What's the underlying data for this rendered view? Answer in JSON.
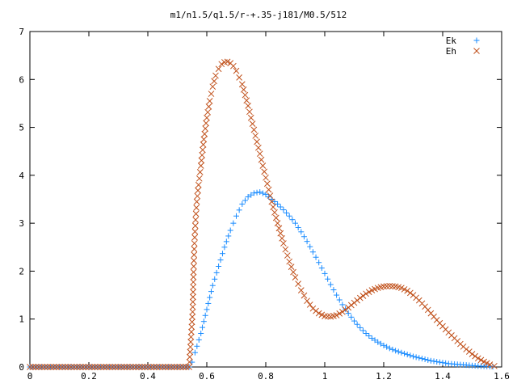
{
  "chart_data": {
    "type": "scatter",
    "title": "m1/n1.5/q1.5/r-+.35-j181/M0.5/512",
    "xlabel": "",
    "ylabel": "",
    "xlim": [
      0,
      1.6
    ],
    "ylim": [
      0,
      7
    ],
    "x_ticks": [
      "0",
      "0.2",
      "0.4",
      "0.6",
      "0.8",
      "1",
      "1.2",
      "1.4",
      "1.6"
    ],
    "y_ticks": [
      "0",
      "1",
      "2",
      "3",
      "4",
      "5",
      "6",
      "7"
    ],
    "legend_position": "top-right",
    "grid": false,
    "series": [
      {
        "name": "Ek",
        "marker": "plus",
        "color": "#1a8cff",
        "points": [
          [
            0.0,
            0
          ],
          [
            0.05,
            0
          ],
          [
            0.1,
            0
          ],
          [
            0.15,
            0
          ],
          [
            0.2,
            0
          ],
          [
            0.25,
            0
          ],
          [
            0.3,
            0
          ],
          [
            0.35,
            0
          ],
          [
            0.4,
            0
          ],
          [
            0.45,
            0
          ],
          [
            0.5,
            0
          ],
          [
            0.54,
            0
          ],
          [
            0.55,
            0.1
          ],
          [
            0.56,
            0.3
          ],
          [
            0.58,
            0.7
          ],
          [
            0.6,
            1.2
          ],
          [
            0.62,
            1.7
          ],
          [
            0.64,
            2.1
          ],
          [
            0.66,
            2.5
          ],
          [
            0.68,
            2.85
          ],
          [
            0.7,
            3.15
          ],
          [
            0.72,
            3.4
          ],
          [
            0.74,
            3.55
          ],
          [
            0.76,
            3.63
          ],
          [
            0.78,
            3.65
          ],
          [
            0.8,
            3.6
          ],
          [
            0.82,
            3.5
          ],
          [
            0.84,
            3.4
          ],
          [
            0.86,
            3.28
          ],
          [
            0.88,
            3.15
          ],
          [
            0.9,
            3.0
          ],
          [
            0.92,
            2.82
          ],
          [
            0.94,
            2.62
          ],
          [
            0.96,
            2.4
          ],
          [
            0.98,
            2.18
          ],
          [
            1.0,
            1.95
          ],
          [
            1.02,
            1.72
          ],
          [
            1.04,
            1.5
          ],
          [
            1.06,
            1.3
          ],
          [
            1.08,
            1.12
          ],
          [
            1.1,
            0.96
          ],
          [
            1.12,
            0.82
          ],
          [
            1.14,
            0.7
          ],
          [
            1.16,
            0.6
          ],
          [
            1.18,
            0.52
          ],
          [
            1.2,
            0.45
          ],
          [
            1.22,
            0.39
          ],
          [
            1.24,
            0.34
          ],
          [
            1.26,
            0.3
          ],
          [
            1.28,
            0.26
          ],
          [
            1.3,
            0.22
          ],
          [
            1.32,
            0.19
          ],
          [
            1.34,
            0.16
          ],
          [
            1.36,
            0.13
          ],
          [
            1.38,
            0.11
          ],
          [
            1.4,
            0.09
          ],
          [
            1.42,
            0.07
          ],
          [
            1.44,
            0.06
          ],
          [
            1.46,
            0.05
          ],
          [
            1.48,
            0.04
          ],
          [
            1.5,
            0.03
          ],
          [
            1.52,
            0.02
          ],
          [
            1.54,
            0.015
          ],
          [
            1.56,
            0.01
          ],
          [
            1.57,
            0.005
          ]
        ]
      },
      {
        "name": "Eh",
        "marker": "cross",
        "color": "#c0501a",
        "points": [
          [
            0.0,
            0
          ],
          [
            0.05,
            0
          ],
          [
            0.1,
            0
          ],
          [
            0.15,
            0
          ],
          [
            0.2,
            0
          ],
          [
            0.25,
            0
          ],
          [
            0.3,
            0
          ],
          [
            0.35,
            0
          ],
          [
            0.4,
            0
          ],
          [
            0.45,
            0
          ],
          [
            0.5,
            0
          ],
          [
            0.54,
            0
          ],
          [
            0.552,
            1.15
          ],
          [
            0.555,
            1.98
          ],
          [
            0.558,
            2.58
          ],
          [
            0.562,
            3.07
          ],
          [
            0.566,
            3.45
          ],
          [
            0.572,
            3.8
          ],
          [
            0.58,
            4.2
          ],
          [
            0.59,
            4.75
          ],
          [
            0.6,
            5.2
          ],
          [
            0.61,
            5.55
          ],
          [
            0.62,
            5.85
          ],
          [
            0.63,
            6.08
          ],
          [
            0.64,
            6.22
          ],
          [
            0.65,
            6.32
          ],
          [
            0.66,
            6.36
          ],
          [
            0.67,
            6.37
          ],
          [
            0.68,
            6.34
          ],
          [
            0.69,
            6.28
          ],
          [
            0.7,
            6.18
          ],
          [
            0.72,
            5.9
          ],
          [
            0.74,
            5.45
          ],
          [
            0.76,
            4.95
          ],
          [
            0.78,
            4.45
          ],
          [
            0.8,
            3.95
          ],
          [
            0.82,
            3.45
          ],
          [
            0.84,
            3.0
          ],
          [
            0.86,
            2.58
          ],
          [
            0.88,
            2.2
          ],
          [
            0.9,
            1.87
          ],
          [
            0.92,
            1.6
          ],
          [
            0.94,
            1.38
          ],
          [
            0.96,
            1.22
          ],
          [
            0.98,
            1.12
          ],
          [
            1.0,
            1.06
          ],
          [
            1.02,
            1.05
          ],
          [
            1.04,
            1.08
          ],
          [
            1.06,
            1.15
          ],
          [
            1.08,
            1.24
          ],
          [
            1.1,
            1.34
          ],
          [
            1.12,
            1.44
          ],
          [
            1.14,
            1.53
          ],
          [
            1.16,
            1.6
          ],
          [
            1.18,
            1.65
          ],
          [
            1.2,
            1.68
          ],
          [
            1.22,
            1.69
          ],
          [
            1.24,
            1.68
          ],
          [
            1.26,
            1.65
          ],
          [
            1.28,
            1.59
          ],
          [
            1.3,
            1.5
          ],
          [
            1.32,
            1.39
          ],
          [
            1.34,
            1.26
          ],
          [
            1.36,
            1.12
          ],
          [
            1.38,
            0.98
          ],
          [
            1.4,
            0.85
          ],
          [
            1.42,
            0.72
          ],
          [
            1.44,
            0.6
          ],
          [
            1.46,
            0.48
          ],
          [
            1.48,
            0.37
          ],
          [
            1.5,
            0.27
          ],
          [
            1.52,
            0.18
          ],
          [
            1.54,
            0.11
          ],
          [
            1.56,
            0.05
          ],
          [
            1.575,
            0.02
          ]
        ]
      }
    ]
  }
}
